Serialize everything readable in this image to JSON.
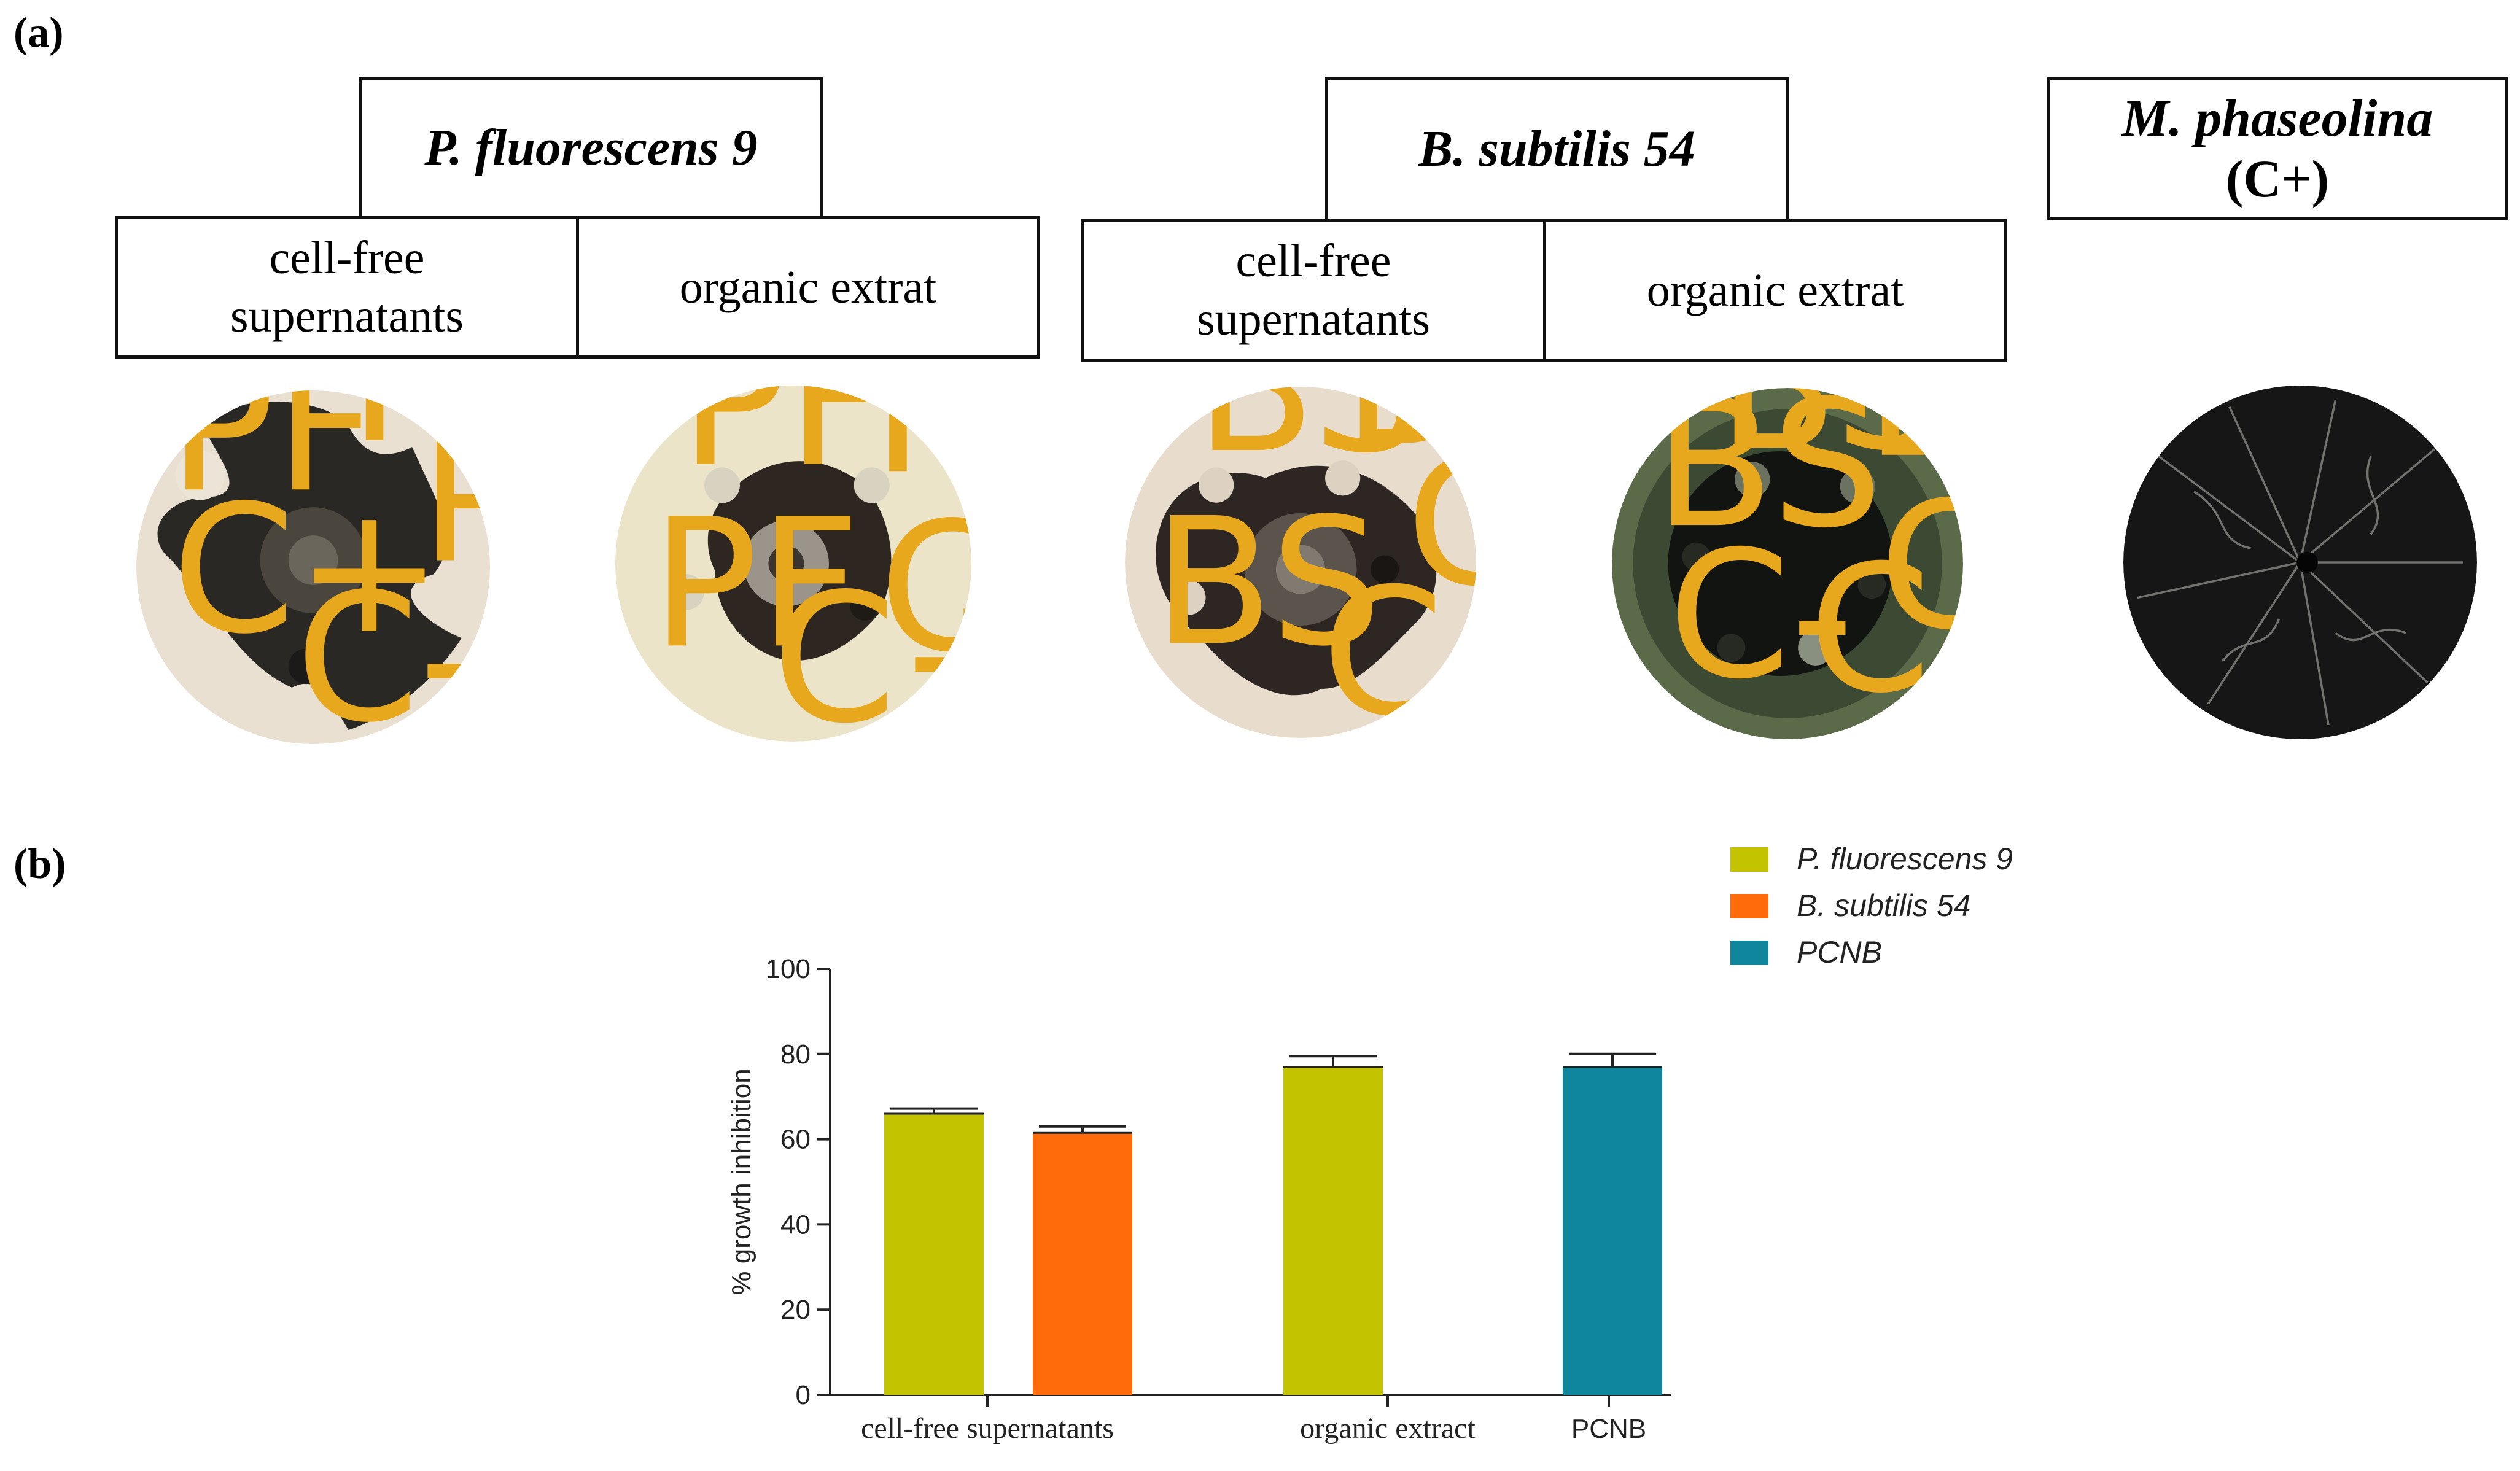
{
  "panels": {
    "a": "(a)",
    "b": "(b)"
  },
  "headers": {
    "pf_title": "P. fluorescens 9",
    "bs_title": "B. subtilis 54",
    "mp_title_line1": "M. phaseolina",
    "mp_title_line2": "(C+)",
    "pf_sub1_line1": "cell-free",
    "pf_sub1_line2": "supernatants",
    "pf_sub2": "organic extrat",
    "bs_sub1_line1": "cell-free",
    "bs_sub1_line2": "supernatants",
    "bs_sub2": "organic extrat"
  },
  "dishes": {
    "pf_sup": [
      "PF",
      "PF",
      "PF",
      "C+",
      "C-"
    ],
    "pf_org": [
      "PF",
      "PF",
      "PF",
      "C-",
      "C+"
    ],
    "bs_sup": [
      "BS",
      "BS",
      "BS",
      "C-",
      "C+"
    ],
    "bs_org": [
      "BS",
      "BS",
      "BS",
      "C-",
      "C-",
      "C+"
    ]
  },
  "chart_data": {
    "type": "bar",
    "ylabel": "% growth inhibition",
    "ylim": [
      0,
      100
    ],
    "yticks": [
      0,
      20,
      40,
      60,
      80,
      100
    ],
    "categories": [
      "cell-free supernatants",
      "organic extract",
      "PCNB"
    ],
    "series": [
      {
        "name": "P. fluorescens 9",
        "color": "#c3c300",
        "values": [
          66,
          77,
          null
        ],
        "errors": [
          1.2,
          2.5,
          null
        ]
      },
      {
        "name": "B. subtilis 54",
        "color": "#ff6a0a",
        "values": [
          61.5,
          null,
          null
        ],
        "errors": [
          1.5,
          null,
          null
        ]
      },
      {
        "name": "PCNB",
        "color": "#0f869b",
        "values": [
          null,
          null,
          77
        ],
        "errors": [
          null,
          null,
          3
        ]
      }
    ],
    "legend_position": "top-right"
  }
}
